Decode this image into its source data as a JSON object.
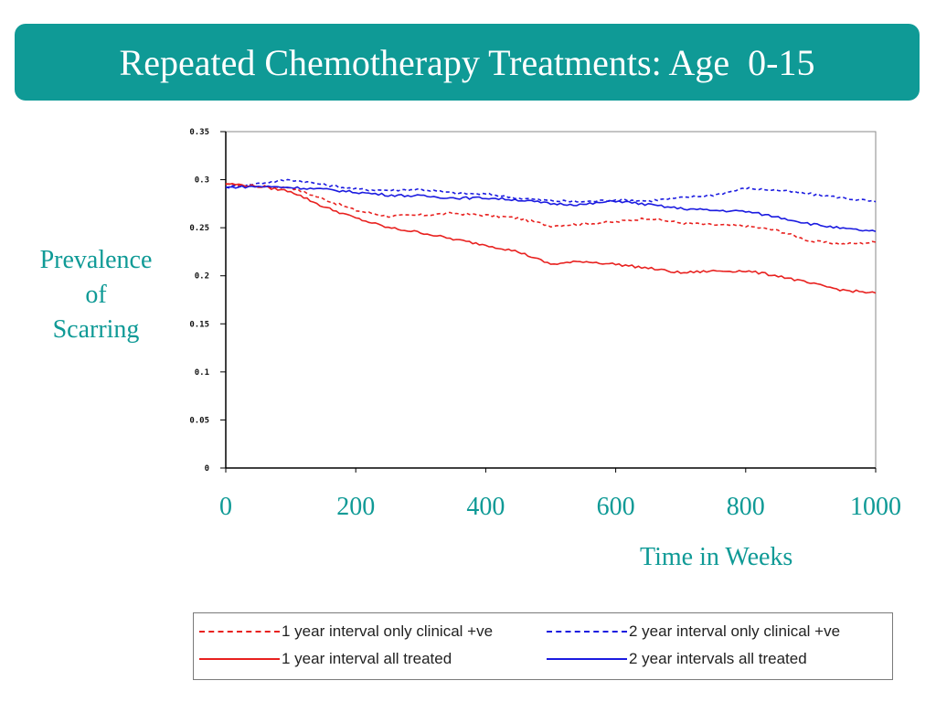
{
  "title": "Repeated Chemotherapy Treatments: Age  0-15",
  "colors": {
    "accent": "#0f9a96",
    "red": "#e8211f",
    "blue": "#1b1be0"
  },
  "chart_data": {
    "type": "line",
    "ylabel_lines": [
      "Prevalence",
      "of",
      "Scarring"
    ],
    "xlabel": "Time in Weeks",
    "xlim": [
      0,
      1000
    ],
    "ylim": [
      0,
      0.35
    ],
    "x_ticks": [
      0,
      200,
      400,
      600,
      800,
      1000
    ],
    "x_tick_labels": [
      "0",
      "200",
      "400",
      "600",
      "800",
      "1000"
    ],
    "y_ticks": [
      0,
      0.05,
      0.1,
      0.15,
      0.2,
      0.25,
      0.3,
      0.35
    ],
    "y_tick_labels": [
      "0",
      "0.05",
      "0.1",
      "0.15",
      "0.2",
      "0.25",
      "0.3",
      "0.35"
    ],
    "grid": false,
    "legend_position": "bottom",
    "x": [
      0,
      50,
      100,
      150,
      200,
      250,
      300,
      350,
      400,
      450,
      500,
      550,
      600,
      650,
      700,
      750,
      800,
      850,
      900,
      950,
      1000
    ],
    "series": [
      {
        "name": "1 year interval only clinical +ve",
        "color": "#e8211f",
        "dashed": true,
        "values": [
          0.295,
          0.293,
          0.292,
          0.28,
          0.268,
          0.262,
          0.263,
          0.265,
          0.263,
          0.26,
          0.252,
          0.254,
          0.256,
          0.26,
          0.255,
          0.253,
          0.252,
          0.247,
          0.236,
          0.233,
          0.235
        ]
      },
      {
        "name": "2 year interval only clinical +ve",
        "color": "#1b1be0",
        "dashed": true,
        "values": [
          0.292,
          0.296,
          0.3,
          0.295,
          0.29,
          0.289,
          0.29,
          0.286,
          0.285,
          0.281,
          0.278,
          0.277,
          0.279,
          0.278,
          0.281,
          0.284,
          0.291,
          0.289,
          0.285,
          0.281,
          0.277
        ]
      },
      {
        "name": "1 year interval all treated",
        "color": "#e8211f",
        "dashed": false,
        "values": [
          0.296,
          0.293,
          0.288,
          0.272,
          0.26,
          0.25,
          0.245,
          0.238,
          0.232,
          0.225,
          0.212,
          0.215,
          0.212,
          0.208,
          0.203,
          0.205,
          0.205,
          0.2,
          0.192,
          0.185,
          0.182
        ]
      },
      {
        "name": "2 year intervals all treated",
        "color": "#1b1be0",
        "dashed": false,
        "values": [
          0.292,
          0.293,
          0.292,
          0.29,
          0.287,
          0.284,
          0.283,
          0.281,
          0.281,
          0.279,
          0.275,
          0.274,
          0.278,
          0.274,
          0.27,
          0.268,
          0.267,
          0.261,
          0.254,
          0.249,
          0.246
        ]
      }
    ]
  }
}
